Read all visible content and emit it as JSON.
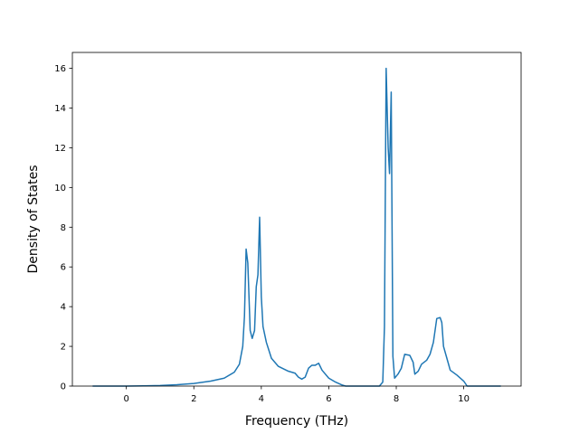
{
  "chart_data": {
    "type": "line",
    "title": "",
    "xlabel": "Frequency (THz)",
    "ylabel": "Density of States",
    "xlim": [
      -1.6,
      11.7
    ],
    "ylim": [
      0,
      16.8
    ],
    "x_ticks": [
      0,
      2,
      4,
      6,
      8,
      10
    ],
    "y_ticks": [
      0,
      2,
      4,
      6,
      8,
      10,
      12,
      14,
      16
    ],
    "grid": false,
    "legend": "none",
    "series": [
      {
        "color": "#1f77b4",
        "points": [
          [
            -1.0,
            0.0
          ],
          [
            0.0,
            0.0
          ],
          [
            0.5,
            0.01
          ],
          [
            1.0,
            0.03
          ],
          [
            1.5,
            0.07
          ],
          [
            2.0,
            0.13
          ],
          [
            2.5,
            0.25
          ],
          [
            2.9,
            0.4
          ],
          [
            3.2,
            0.7
          ],
          [
            3.35,
            1.1
          ],
          [
            3.45,
            2.0
          ],
          [
            3.5,
            3.5
          ],
          [
            3.55,
            6.9
          ],
          [
            3.6,
            6.2
          ],
          [
            3.67,
            2.8
          ],
          [
            3.73,
            2.4
          ],
          [
            3.8,
            2.8
          ],
          [
            3.85,
            5.0
          ],
          [
            3.9,
            5.6
          ],
          [
            3.95,
            8.5
          ],
          [
            4.0,
            4.5
          ],
          [
            4.05,
            3.0
          ],
          [
            4.15,
            2.2
          ],
          [
            4.3,
            1.4
          ],
          [
            4.5,
            1.0
          ],
          [
            4.8,
            0.75
          ],
          [
            5.0,
            0.65
          ],
          [
            5.1,
            0.45
          ],
          [
            5.2,
            0.35
          ],
          [
            5.3,
            0.45
          ],
          [
            5.4,
            0.9
          ],
          [
            5.5,
            1.05
          ],
          [
            5.6,
            1.05
          ],
          [
            5.7,
            1.15
          ],
          [
            5.8,
            0.8
          ],
          [
            6.0,
            0.4
          ],
          [
            6.2,
            0.2
          ],
          [
            6.4,
            0.05
          ],
          [
            6.5,
            0.0
          ],
          [
            7.0,
            0.0
          ],
          [
            7.5,
            0.0
          ],
          [
            7.6,
            0.2
          ],
          [
            7.65,
            3.0
          ],
          [
            7.7,
            16.0
          ],
          [
            7.76,
            12.0
          ],
          [
            7.8,
            10.7
          ],
          [
            7.85,
            14.8
          ],
          [
            7.9,
            1.5
          ],
          [
            7.95,
            0.4
          ],
          [
            8.05,
            0.6
          ],
          [
            8.15,
            0.9
          ],
          [
            8.25,
            1.6
          ],
          [
            8.4,
            1.55
          ],
          [
            8.5,
            1.2
          ],
          [
            8.55,
            0.6
          ],
          [
            8.65,
            0.75
          ],
          [
            8.75,
            1.1
          ],
          [
            8.9,
            1.3
          ],
          [
            9.0,
            1.6
          ],
          [
            9.1,
            2.2
          ],
          [
            9.2,
            3.4
          ],
          [
            9.3,
            3.45
          ],
          [
            9.35,
            3.2
          ],
          [
            9.4,
            2.0
          ],
          [
            9.5,
            1.4
          ],
          [
            9.6,
            0.8
          ],
          [
            9.8,
            0.55
          ],
          [
            10.0,
            0.25
          ],
          [
            10.1,
            0.0
          ],
          [
            10.5,
            0.0
          ],
          [
            11.1,
            0.0
          ]
        ]
      }
    ]
  }
}
